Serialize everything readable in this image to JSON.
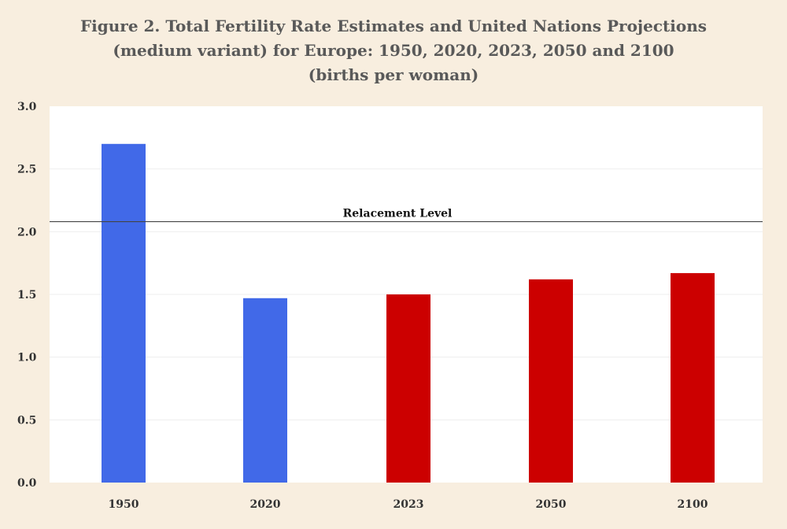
{
  "chart_data": {
    "type": "bar",
    "title_lines": [
      "Figure 2. Total Fertility Rate Estimates and United Nations Projections",
      "(medium variant) for Europe: 1950, 2020, 2023, 2050 and 2100",
      "(births per woman)"
    ],
    "categories": [
      "1950",
      "2020",
      "2023",
      "2050",
      "2100"
    ],
    "values": [
      2.7,
      1.47,
      1.5,
      1.62,
      1.67
    ],
    "bar_colors": [
      "#4169e8",
      "#4169e8",
      "#cc0000",
      "#cc0000",
      "#cc0000"
    ],
    "ylim": [
      0,
      3
    ],
    "y_ticks": [
      "0.0",
      "0.5",
      "1.0",
      "1.5",
      "2.0",
      "2.5",
      "3.0"
    ],
    "xlabel": "",
    "ylabel": "",
    "grid": true,
    "reference_line": {
      "label": "Relacement Level",
      "value": 2.08
    }
  },
  "colors": {
    "background": "#f8eedf",
    "plot_background": "#ffffff",
    "gridline": "#eeeeee",
    "reference_line": "#444444"
  }
}
